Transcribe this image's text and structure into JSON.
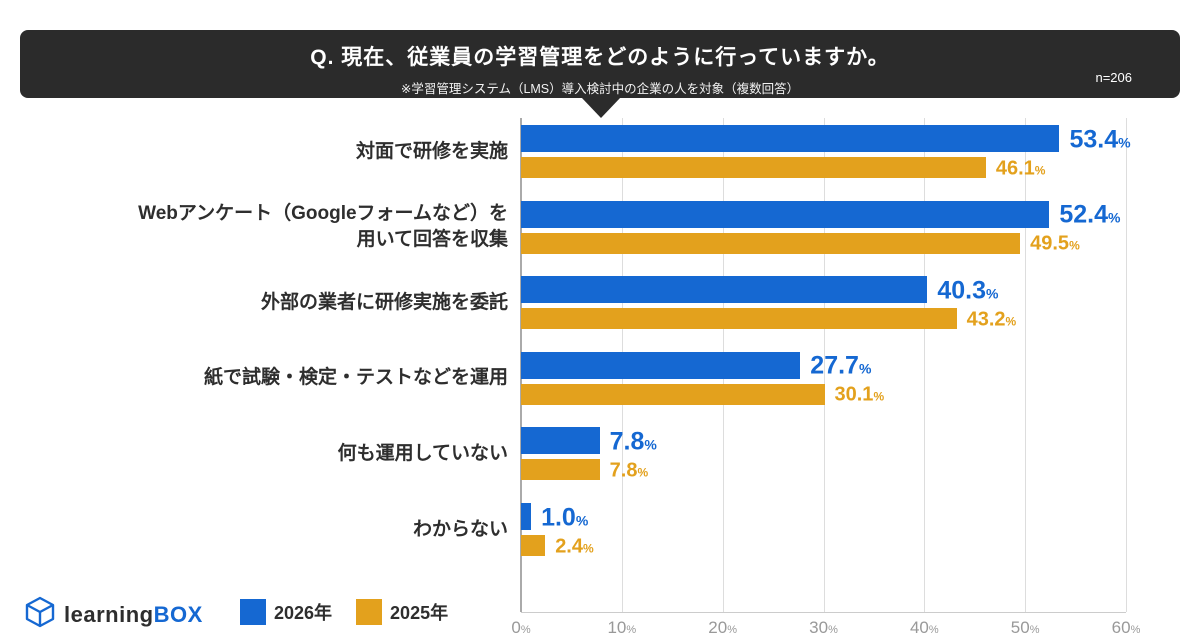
{
  "header": {
    "title": "Q. 現在、従業員の学習管理をどのように行っていますか。",
    "subtitle": "※学習管理システム（LMS）導入検討中の企業の人を対象（複数回答）",
    "sample": "n=206"
  },
  "legend": [
    {
      "label": "2026年",
      "color": "#1568d2"
    },
    {
      "label": "2025年",
      "color": "#e3a11d"
    }
  ],
  "logo": {
    "part1": "learning",
    "part2": "BOX"
  },
  "chart_data": {
    "type": "bar",
    "orientation": "horizontal",
    "categories": [
      "対面で研修を実施",
      "Webアンケート（Googleフォームなど）を\n用いて回答を収集",
      "外部の業者に研修実施を委託",
      "紙で試験・検定・テストなどを運用",
      "何も運用していない",
      "わからない"
    ],
    "series": [
      {
        "name": "2026年",
        "color": "#1568d2",
        "values": [
          53.4,
          52.4,
          40.3,
          27.7,
          7.8,
          1.0
        ]
      },
      {
        "name": "2025年",
        "color": "#e3a11d",
        "values": [
          46.1,
          49.5,
          43.2,
          30.1,
          7.8,
          2.4
        ]
      }
    ],
    "xlim": [
      0,
      60
    ],
    "xticks": [
      0,
      10,
      20,
      30,
      40,
      50,
      60
    ],
    "tick_suffix": "%",
    "value_suffix": "%",
    "grid": true,
    "legend_position": "bottom-left"
  }
}
